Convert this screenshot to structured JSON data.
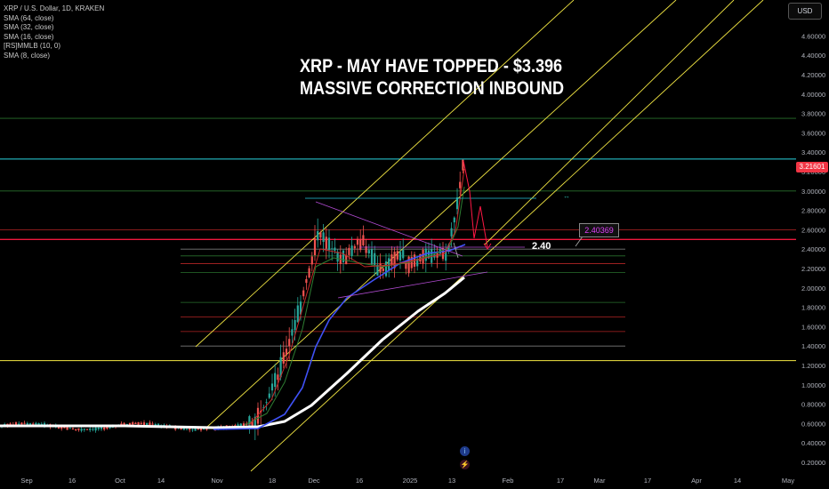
{
  "legend": {
    "symbol_line": "XRP / U.S. Dollar, 1D, KRAKEN",
    "indicators": [
      "SMA (64, close)",
      "SMA (32, close)",
      "SMA (16, close)",
      "[RS]MMLB (10, 0)",
      "SMA (8, close)"
    ]
  },
  "title": {
    "line1": "XRP - MAY HAVE TOPPED - $3.396",
    "line2": "MASSIVE CORRECTION INBOUND"
  },
  "currency_button": "USD",
  "current_price_label": "3.21601",
  "annotation_box": "2.40369",
  "level_label": "2.40",
  "icons": {
    "info": "info-icon",
    "flash": "lightning-icon"
  },
  "colors": {
    "up": "#26a69a",
    "down": "#ef5350",
    "sma64": "#ffffff",
    "sma32": "#3f51f5",
    "sma16": "#2e7d32",
    "sma8": "#c62828",
    "channel": "#f0e442",
    "projection": "#ff1744",
    "triangle": "#b04ad0"
  },
  "chart_data": {
    "type": "line",
    "title": "XRP - MAY HAVE TOPPED - $3.396",
    "subtitle": "MASSIVE CORRECTION INBOUND",
    "y_ticks": [
      "4.60000",
      "4.40000",
      "4.20000",
      "4.00000",
      "3.80000",
      "3.60000",
      "3.40000",
      "3.20000",
      "3.00000",
      "2.80000",
      "2.60000",
      "2.40000",
      "2.20000",
      "2.00000",
      "1.80000",
      "1.60000",
      "1.40000",
      "1.20000",
      "1.00000",
      "0.80000",
      "0.60000",
      "0.40000",
      "0.20000"
    ],
    "x_ticks": [
      "Sep",
      "16",
      "Oct",
      "14",
      "Nov",
      "18",
      "Dec",
      "16",
      "2025",
      "13",
      "Feb",
      "17",
      "Mar",
      "17",
      "Apr",
      "14",
      "May"
    ],
    "ylim": [
      0.15,
      4.75
    ],
    "price_path": [
      [
        "Sep",
        0.57
      ],
      [
        "16",
        0.59
      ],
      [
        "Oct",
        0.56
      ],
      [
        "14",
        0.54
      ],
      [
        "Nov",
        0.52
      ],
      [
        "18",
        1.12
      ],
      [
        "Dec",
        2.6
      ],
      [
        "16",
        2.38
      ],
      [
        "2025",
        2.35
      ],
      [
        "13",
        3.3
      ]
    ],
    "sma64": [
      [
        "Nov",
        0.53
      ],
      [
        "18",
        0.7
      ],
      [
        "Dec",
        1.05
      ],
      [
        "16",
        1.55
      ],
      [
        "2025",
        2.0
      ]
    ],
    "sma32": [
      [
        "Nov",
        0.52
      ],
      [
        "18",
        0.75
      ],
      [
        "Dec",
        1.9
      ],
      [
        "16",
        2.25
      ],
      [
        "2025",
        2.35
      ]
    ],
    "horizontal_levels": [
      3.75,
      3.33,
      3.0,
      2.6,
      2.5,
      2.4,
      2.33,
      2.25,
      2.16,
      1.85,
      1.7,
      1.55,
      1.4,
      1.25
    ],
    "projection": [
      [
        "13",
        3.2
      ],
      [
        "13+",
        2.9
      ],
      [
        "Feb-",
        2.55
      ],
      [
        "Feb",
        2.75
      ],
      [
        "Feb+",
        2.45
      ]
    ]
  }
}
